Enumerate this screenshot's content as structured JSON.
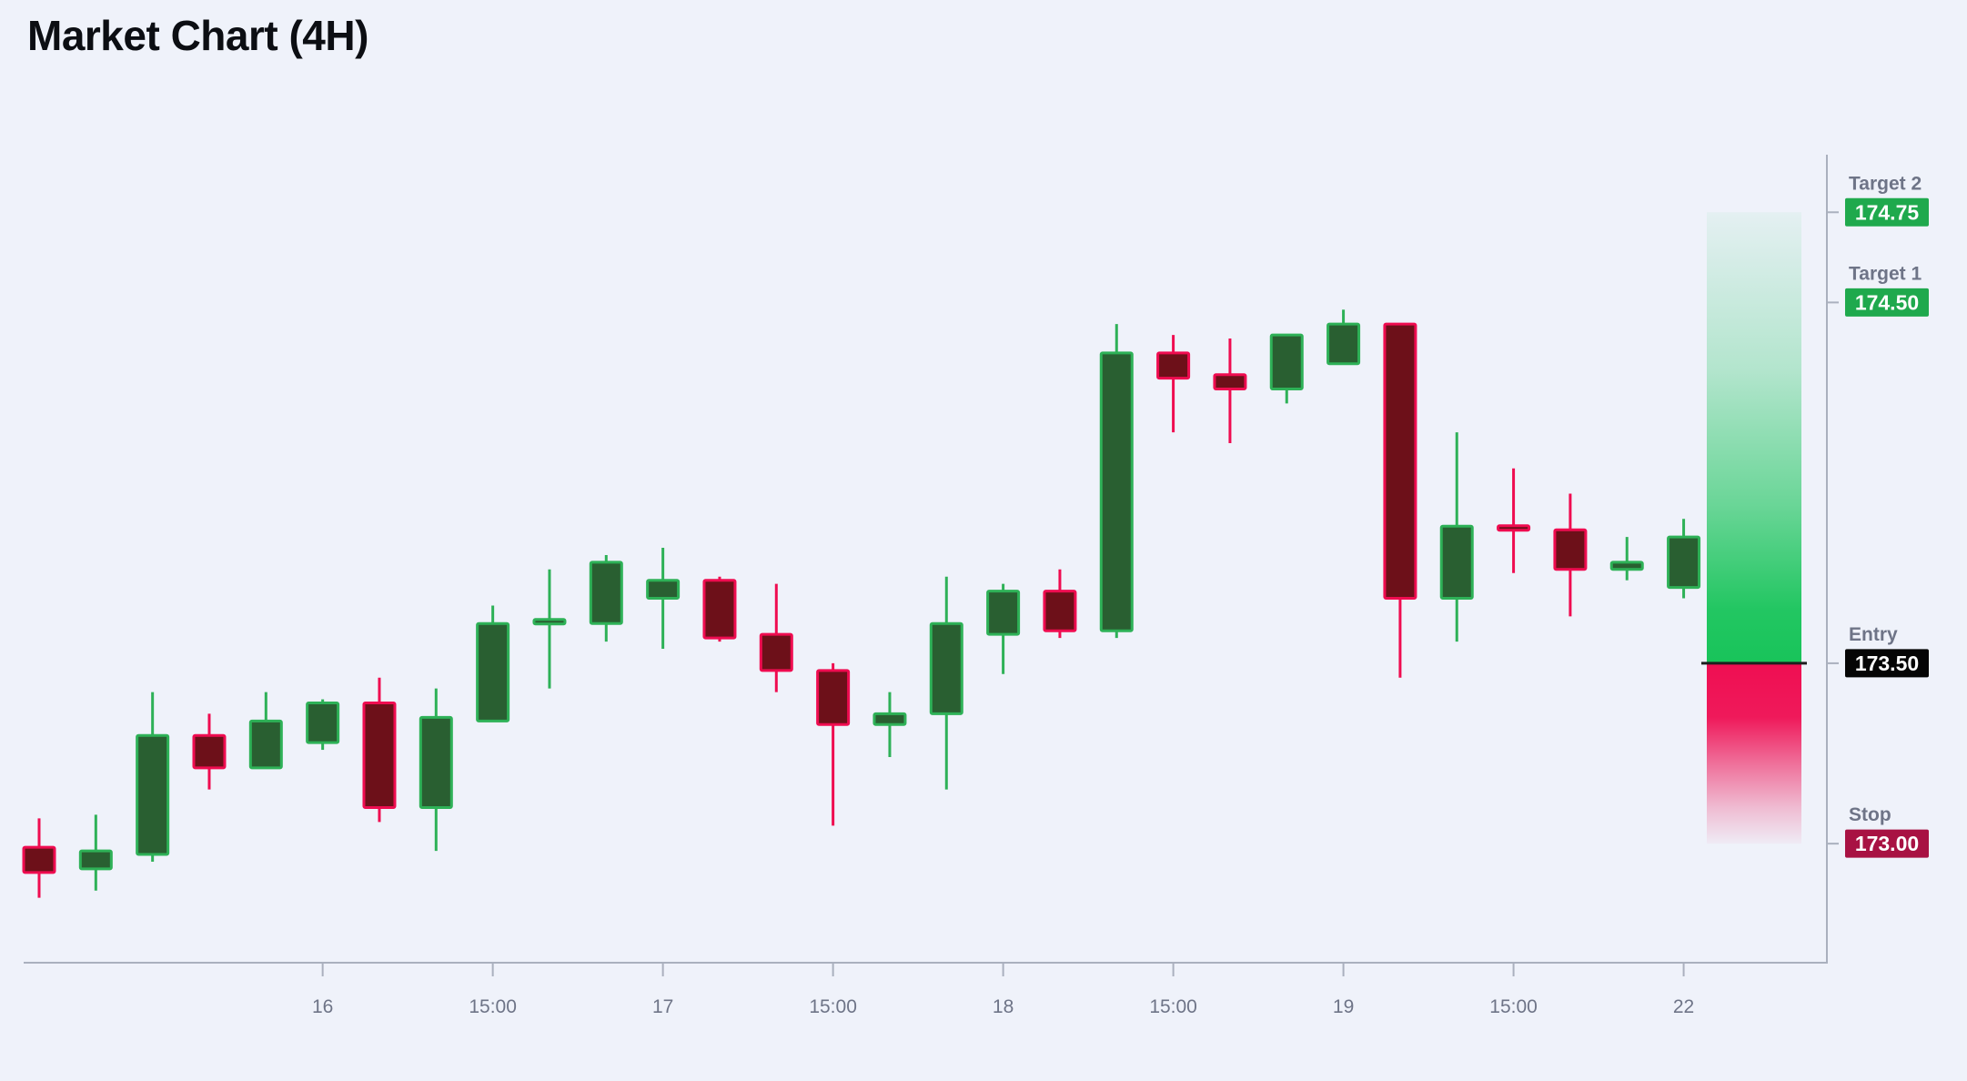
{
  "title": "Market Chart (4H)",
  "colors": {
    "background": "#eff2fa",
    "title": "#0c0e13",
    "axis": "#aab0be",
    "tick_label": "#6e7487",
    "up_border": "#2eb157",
    "up_fill": "#295f31",
    "down_border": "#ef0c50",
    "down_fill": "#6d1019",
    "target_badge": "#1fa94d",
    "entry_badge": "#050505",
    "stop_badge": "#a81243",
    "badge_text": "#ffffff",
    "zone_green": "#18c45a",
    "zone_red": "#ef0e52",
    "entry_line": "#1e1e1e"
  },
  "chart_data": {
    "type": "candlestick",
    "title": "Market Chart (4H)",
    "timeframe": "4H",
    "ylim": [
      172.67,
      174.96
    ],
    "grid": false,
    "x_ticks": [
      {
        "candle": 5,
        "label": "16"
      },
      {
        "candle": 8,
        "label": "15:00"
      },
      {
        "candle": 11,
        "label": "17"
      },
      {
        "candle": 14,
        "label": "15:00"
      },
      {
        "candle": 17,
        "label": "18"
      },
      {
        "candle": 20,
        "label": "15:00"
      },
      {
        "candle": 23,
        "label": "19"
      },
      {
        "candle": 26,
        "label": "15:00"
      },
      {
        "candle": 29,
        "label": "22"
      }
    ],
    "candles": [
      {
        "o": 172.99,
        "h": 173.07,
        "l": 172.85,
        "c": 172.92
      },
      {
        "o": 172.93,
        "h": 173.08,
        "l": 172.87,
        "c": 172.98
      },
      {
        "o": 172.97,
        "h": 173.42,
        "l": 172.95,
        "c": 173.3
      },
      {
        "o": 173.3,
        "h": 173.36,
        "l": 173.15,
        "c": 173.21
      },
      {
        "o": 173.21,
        "h": 173.42,
        "l": 173.21,
        "c": 173.34
      },
      {
        "o": 173.28,
        "h": 173.4,
        "l": 173.26,
        "c": 173.39
      },
      {
        "o": 173.39,
        "h": 173.46,
        "l": 173.06,
        "c": 173.1
      },
      {
        "o": 173.1,
        "h": 173.43,
        "l": 172.98,
        "c": 173.35
      },
      {
        "o": 173.34,
        "h": 173.66,
        "l": 173.34,
        "c": 173.61
      },
      {
        "o": 173.61,
        "h": 173.76,
        "l": 173.43,
        "c": 173.62
      },
      {
        "o": 173.61,
        "h": 173.8,
        "l": 173.56,
        "c": 173.78
      },
      {
        "o": 173.68,
        "h": 173.82,
        "l": 173.54,
        "c": 173.73
      },
      {
        "o": 173.73,
        "h": 173.74,
        "l": 173.56,
        "c": 173.57
      },
      {
        "o": 173.58,
        "h": 173.72,
        "l": 173.42,
        "c": 173.48
      },
      {
        "o": 173.48,
        "h": 173.5,
        "l": 173.05,
        "c": 173.33
      },
      {
        "o": 173.33,
        "h": 173.42,
        "l": 173.24,
        "c": 173.36
      },
      {
        "o": 173.36,
        "h": 173.74,
        "l": 173.15,
        "c": 173.61
      },
      {
        "o": 173.58,
        "h": 173.72,
        "l": 173.47,
        "c": 173.7
      },
      {
        "o": 173.7,
        "h": 173.76,
        "l": 173.57,
        "c": 173.59
      },
      {
        "o": 173.59,
        "h": 174.44,
        "l": 173.57,
        "c": 174.36
      },
      {
        "o": 174.36,
        "h": 174.41,
        "l": 174.14,
        "c": 174.29
      },
      {
        "o": 174.3,
        "h": 174.4,
        "l": 174.11,
        "c": 174.26
      },
      {
        "o": 174.26,
        "h": 174.41,
        "l": 174.22,
        "c": 174.41
      },
      {
        "o": 174.33,
        "h": 174.48,
        "l": 174.33,
        "c": 174.44
      },
      {
        "o": 174.44,
        "h": 174.44,
        "l": 173.46,
        "c": 173.68
      },
      {
        "o": 173.68,
        "h": 174.14,
        "l": 173.56,
        "c": 173.88
      },
      {
        "o": 173.88,
        "h": 174.04,
        "l": 173.75,
        "c": 173.87
      },
      {
        "o": 173.87,
        "h": 173.97,
        "l": 173.63,
        "c": 173.76
      },
      {
        "o": 173.76,
        "h": 173.85,
        "l": 173.73,
        "c": 173.78
      },
      {
        "o": 173.71,
        "h": 173.9,
        "l": 173.68,
        "c": 173.85
      }
    ],
    "levels": [
      {
        "name": "Target 2",
        "value": "174.75",
        "price": 174.75,
        "kind": "target"
      },
      {
        "name": "Target 1",
        "value": "174.50",
        "price": 174.5,
        "kind": "target"
      },
      {
        "name": "Entry",
        "value": "173.50",
        "price": 173.5,
        "kind": "entry"
      },
      {
        "name": "Stop",
        "value": "173.00",
        "price": 173.0,
        "kind": "stop"
      }
    ],
    "zone": {
      "top_price": 174.75,
      "split_price": 173.5,
      "bottom_price": 173.0
    }
  }
}
